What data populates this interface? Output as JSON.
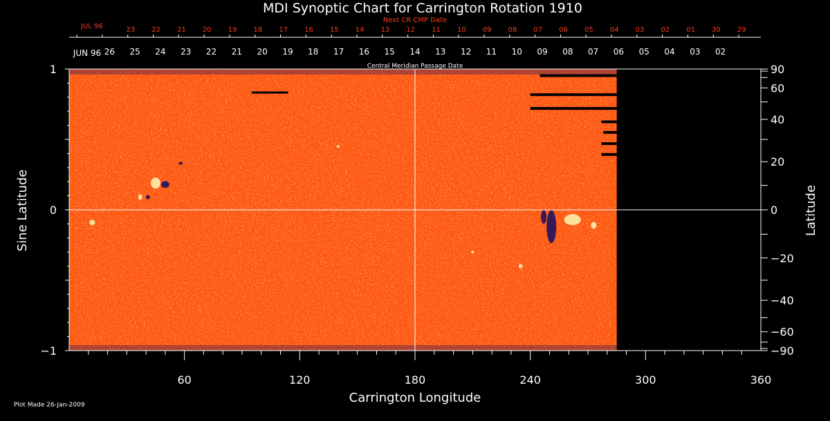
{
  "chart_data": {
    "type": "heatmap",
    "title": "MDI Synoptic Chart for Carrington Rotation 1910",
    "xlabel": "Carrington Longitude",
    "ylabel_left": "Sine Latitude",
    "ylabel_right": "Latitude",
    "xlim": [
      0,
      360
    ],
    "ylim": [
      -1,
      1
    ],
    "x_ticks": [
      {
        "value": 60,
        "label": "60"
      },
      {
        "value": 120,
        "label": "120"
      },
      {
        "value": 180,
        "label": "180"
      },
      {
        "value": 240,
        "label": "240"
      },
      {
        "value": 300,
        "label": "300"
      },
      {
        "value": 360,
        "label": "360"
      }
    ],
    "y_ticks_left": [
      {
        "value": 1,
        "label": "1"
      },
      {
        "value": 0,
        "label": "0"
      },
      {
        "value": -1,
        "label": "−1"
      }
    ],
    "y_ticks_right": [
      {
        "value": 90,
        "label": "90"
      },
      {
        "value": 60,
        "label": "60"
      },
      {
        "value": 40,
        "label": "40"
      },
      {
        "value": 20,
        "label": "20"
      },
      {
        "value": 0,
        "label": "0"
      },
      {
        "value": -20,
        "label": "−20"
      },
      {
        "value": -40,
        "label": "−40"
      },
      {
        "value": -60,
        "label": "−60"
      },
      {
        "value": -90,
        "label": "−90"
      }
    ],
    "data_coverage_longitude": [
      0,
      285
    ],
    "reference_lines": {
      "longitude": 180,
      "sine_latitude": 0
    },
    "cmp_axis": {
      "label": "Central Meridian Passage Date",
      "month_label": "JUN 96",
      "dates": [
        "26",
        "25",
        "24",
        "23",
        "22",
        "21",
        "20",
        "19",
        "18",
        "17",
        "16",
        "15",
        "14",
        "13",
        "12",
        "11",
        "10",
        "09",
        "08",
        "07",
        "06",
        "05",
        "04",
        "03",
        "02"
      ],
      "first_longitude": 21,
      "step": -13.25
    },
    "next_cmp_axis": {
      "label": "Next CR CMP Date",
      "month_label": "JUL 96",
      "dates": [
        "23",
        "22",
        "21",
        "20",
        "19",
        "18",
        "17",
        "16",
        "15",
        "14",
        "13",
        "12",
        "11",
        "10",
        "09",
        "08",
        "07",
        "06",
        "05",
        "04",
        "03",
        "02",
        "01",
        "30",
        "29"
      ],
      "first_longitude": 32,
      "step": -13.25
    },
    "colors": {
      "background": "#000000",
      "field_base": "#ff5a14",
      "positive_polarity": "#fff2b0",
      "negative_polarity": "#1a1060",
      "next_cmp_text": "#ff3a1a",
      "text": "#ffffff"
    }
  },
  "footer": {
    "plot_made": "Plot Made 26-Jan-2009"
  }
}
